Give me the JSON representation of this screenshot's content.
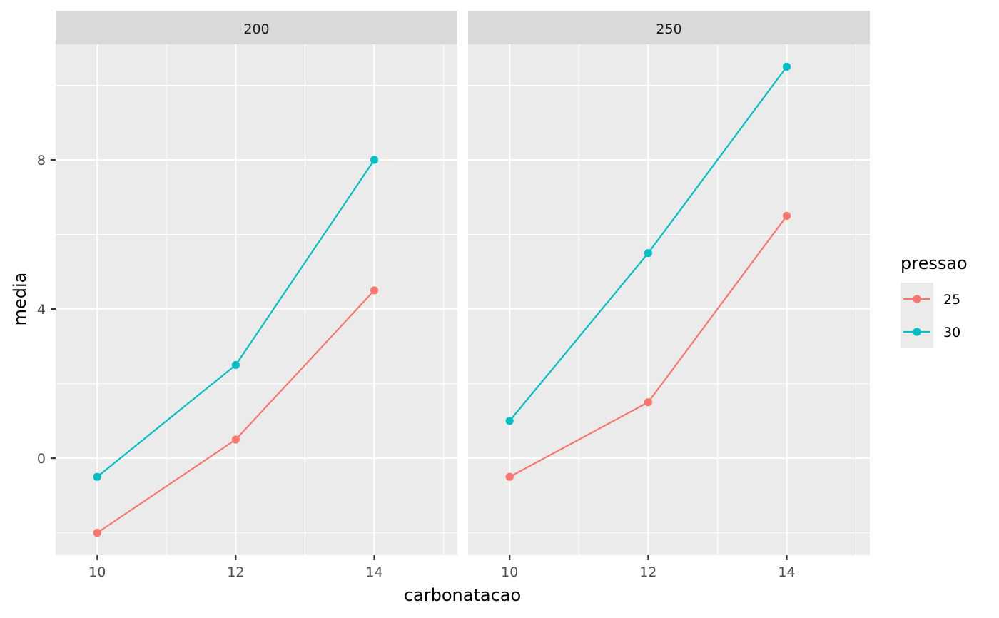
{
  "chart_data": {
    "type": "line",
    "xlabel": "carbonatacao",
    "ylabel": "media",
    "legend": {
      "title": "pressao",
      "position": "right"
    },
    "x_ticks": [
      10,
      12,
      14
    ],
    "y_ticks": [
      0,
      4,
      8
    ],
    "xlim": [
      9.4,
      15.2
    ],
    "ylim": [
      -2.6,
      11.1
    ],
    "grid": true,
    "colors": {
      "25": "#F8766D",
      "30": "#00BFC4"
    },
    "panels": [
      {
        "facet": "200",
        "series": [
          {
            "name": "25",
            "x": [
              10,
              12,
              14
            ],
            "values": [
              -2.0,
              0.5,
              4.5
            ]
          },
          {
            "name": "30",
            "x": [
              10,
              12,
              14
            ],
            "values": [
              -0.5,
              2.5,
              8.0
            ]
          }
        ]
      },
      {
        "facet": "250",
        "series": [
          {
            "name": "25",
            "x": [
              10,
              12,
              14
            ],
            "values": [
              -0.5,
              1.5,
              6.5
            ]
          },
          {
            "name": "30",
            "x": [
              10,
              12,
              14
            ],
            "values": [
              1.0,
              5.5,
              10.5
            ]
          }
        ]
      }
    ]
  }
}
